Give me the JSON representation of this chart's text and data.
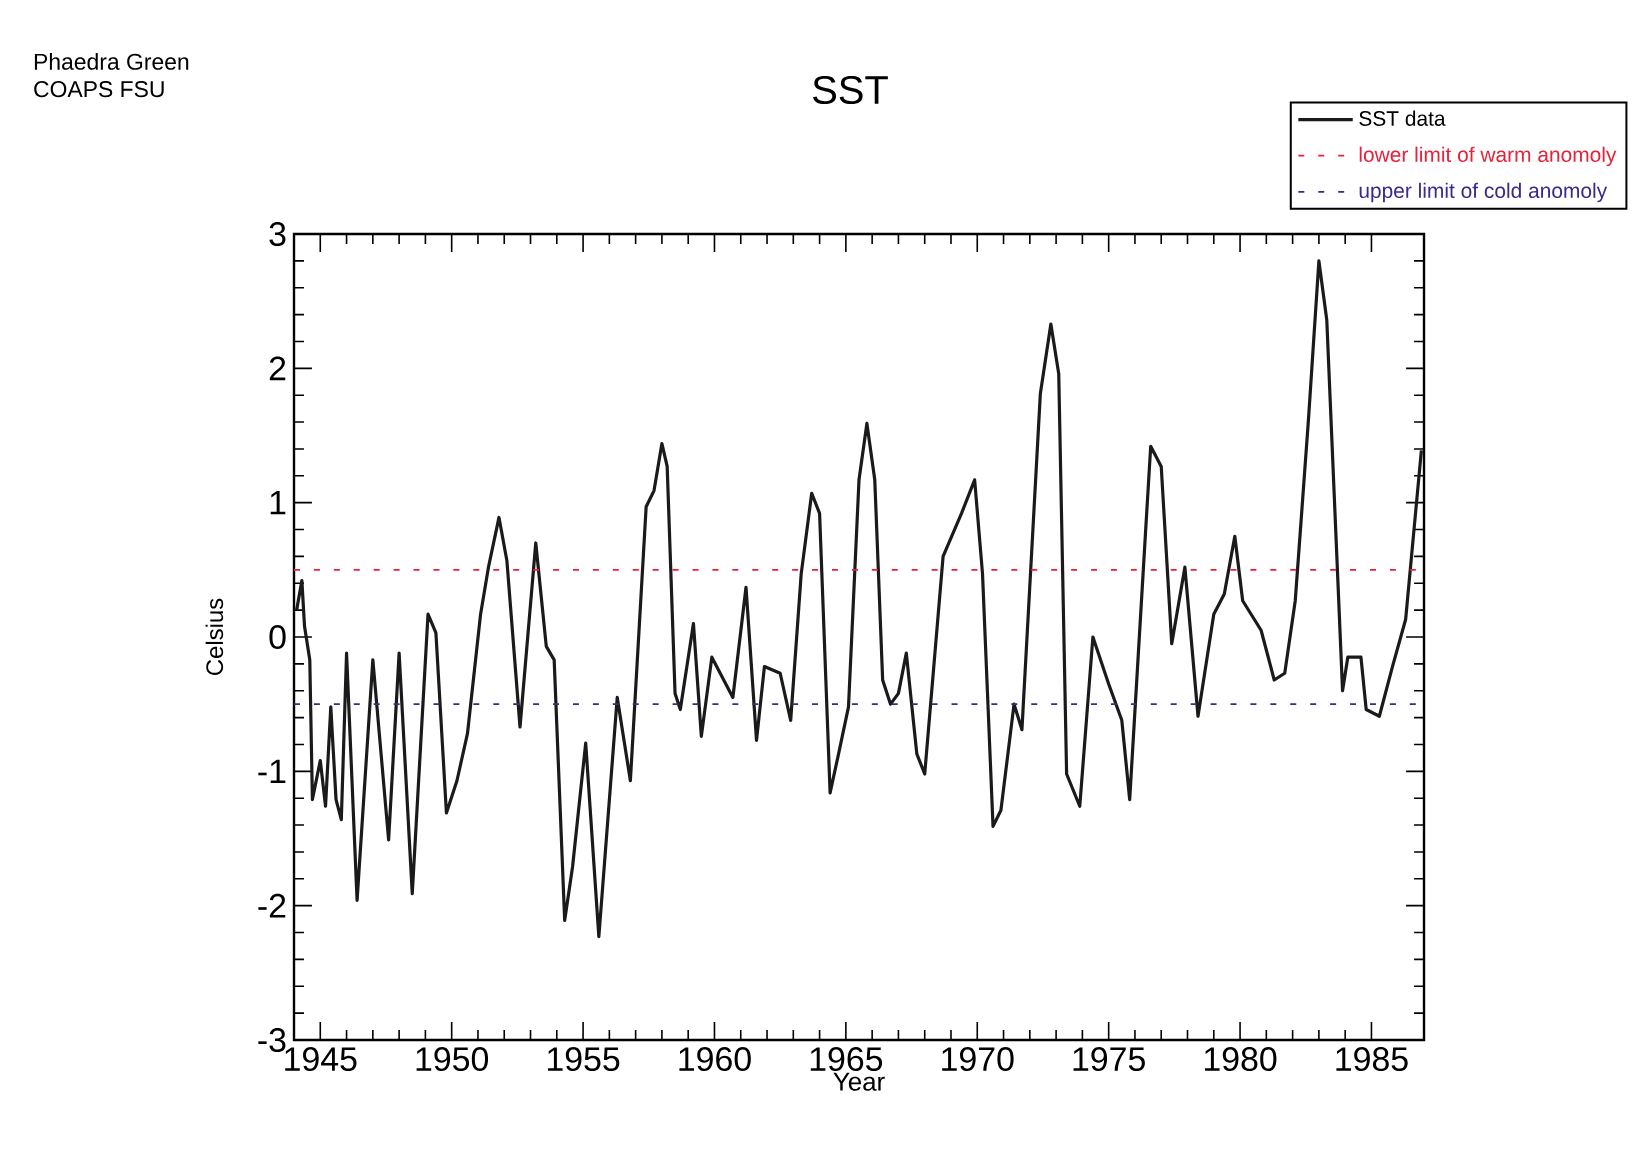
{
  "chart_data": {
    "type": "line",
    "title": "SST",
    "xlabel": "Year",
    "ylabel": "Celsius",
    "annotations": [
      "Phaedra Green",
      "COAPS FSU"
    ],
    "xlim": [
      1944,
      1987
    ],
    "ylim": [
      -3,
      3
    ],
    "xticks": [
      1945,
      1950,
      1955,
      1960,
      1965,
      1970,
      1975,
      1980,
      1985
    ],
    "yticks": [
      -3,
      -2,
      -1,
      0,
      1,
      2,
      3
    ],
    "grid": false,
    "legend": "top right",
    "marker": "none",
    "ref_lines": [
      {
        "axis": "y",
        "value": 0.5,
        "label": "lower limit of warm anomoly",
        "color": "#e8213a",
        "line_style": "dashed"
      },
      {
        "axis": "y",
        "value": -0.5,
        "label": "upper limit of cold anomoly",
        "color": "#3a2a8a",
        "line_style": "dashed"
      }
    ],
    "series": [
      {
        "name": "SST data",
        "color": "#1a1a1a",
        "x": [
          1944.1,
          1944.3,
          1944.4,
          1944.6,
          1944.7,
          1945.0,
          1945.2,
          1945.4,
          1945.6,
          1945.8,
          1946.0,
          1946.4,
          1947.0,
          1947.6,
          1948.0,
          1948.5,
          1949.1,
          1949.4,
          1949.8,
          1950.2,
          1950.6,
          1951.1,
          1951.4,
          1951.8,
          1952.1,
          1952.6,
          1953.2,
          1953.6,
          1953.9,
          1954.3,
          1954.6,
          1955.1,
          1955.6,
          1956.3,
          1956.8,
          1957.4,
          1957.7,
          1958.0,
          1958.2,
          1958.5,
          1958.7,
          1959.2,
          1959.5,
          1959.9,
          1960.7,
          1961.2,
          1961.6,
          1961.9,
          1962.5,
          1962.9,
          1963.3,
          1963.7,
          1964.0,
          1964.4,
          1964.7,
          1965.1,
          1965.5,
          1965.8,
          1966.1,
          1966.4,
          1966.7,
          1967.0,
          1967.3,
          1967.7,
          1968.0,
          1968.7,
          1969.4,
          1969.9,
          1970.2,
          1970.6,
          1970.9,
          1971.4,
          1971.7,
          1972.4,
          1972.8,
          1973.1,
          1973.4,
          1973.9,
          1974.4,
          1975.0,
          1975.5,
          1975.8,
          1976.4,
          1976.6,
          1977.0,
          1977.4,
          1977.9,
          1978.4,
          1979.0,
          1979.4,
          1979.8,
          1980.1,
          1980.8,
          1981.3,
          1981.7,
          1982.1,
          1982.6,
          1983.0,
          1983.3,
          1983.9,
          1984.1,
          1984.6,
          1984.8,
          1985.3,
          1985.8,
          1986.3,
          1986.9
        ],
        "values": [
          0.2,
          0.42,
          0.08,
          -0.17,
          -1.21,
          -0.92,
          -1.26,
          -0.52,
          -1.21,
          -1.36,
          -0.12,
          -1.96,
          -0.17,
          -1.51,
          -0.12,
          -1.91,
          0.17,
          0.03,
          -1.31,
          -1.07,
          -0.72,
          0.17,
          0.52,
          0.89,
          0.57,
          -0.67,
          0.7,
          -0.07,
          -0.17,
          -2.11,
          -1.71,
          -0.79,
          -2.23,
          -0.45,
          -1.07,
          0.97,
          1.09,
          1.44,
          1.27,
          -0.42,
          -0.54,
          0.1,
          -0.74,
          -0.15,
          -0.45,
          0.37,
          -0.77,
          -0.22,
          -0.27,
          -0.62,
          0.47,
          1.07,
          0.92,
          -1.16,
          -0.89,
          -0.52,
          1.17,
          1.59,
          1.17,
          -0.32,
          -0.5,
          -0.42,
          -0.12,
          -0.87,
          -1.02,
          0.6,
          0.92,
          1.17,
          0.47,
          -1.41,
          -1.29,
          -0.5,
          -0.69,
          1.81,
          2.33,
          1.96,
          -1.02,
          -1.26,
          0.0,
          -0.35,
          -0.62,
          -1.21,
          0.77,
          1.42,
          1.27,
          -0.05,
          0.52,
          -0.59,
          0.17,
          0.32,
          0.75,
          0.27,
          0.05,
          -0.32,
          -0.27,
          0.27,
          1.61,
          2.8,
          2.36,
          -0.4,
          -0.15,
          -0.15,
          -0.54,
          -0.59,
          -0.22,
          0.13,
          1.39
        ]
      }
    ]
  }
}
